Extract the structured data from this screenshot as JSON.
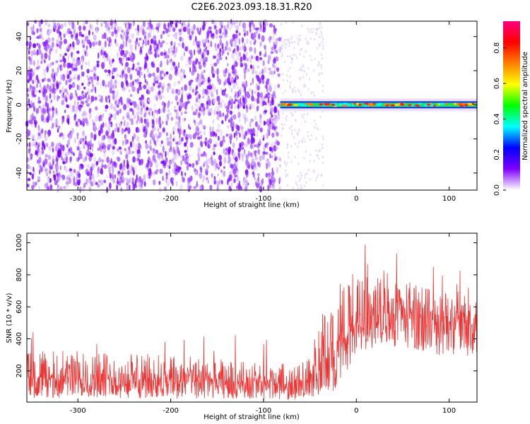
{
  "title": "C2E6.2023.093.18.31.R20",
  "chart_data": [
    {
      "type": "heatmap",
      "xlabel": "Height of straight line (km)",
      "ylabel": "Frequency (Hz)",
      "xlim": [
        -355,
        130
      ],
      "ylim": [
        -50,
        49
      ],
      "x_ticks": [
        -300,
        -200,
        -100,
        0,
        100
      ],
      "y_ticks": [
        -40,
        -20,
        0,
        20,
        40
      ],
      "colorbar": {
        "label": "Normalized spectral amplitude",
        "range": [
          0,
          0.95
        ],
        "ticks": [
          0.0,
          0.2,
          0.4,
          0.6,
          0.8
        ],
        "colors": [
          "#ffffff",
          "#7f00ff",
          "#0000ff",
          "#00ffff",
          "#00ff00",
          "#ffff00",
          "#ff8000",
          "#ff0000",
          "#ff0080"
        ]
      },
      "regions": [
        {
          "x": [
            -355,
            -82
          ],
          "frequency": [
            -50,
            49
          ],
          "amplitude": "noise 0.1-0.3 (purple)"
        },
        {
          "x": [
            -82,
            130
          ],
          "frequency": [
            -2,
            2
          ],
          "amplitude": "signal 0.4-0.9 (green to red)"
        }
      ]
    },
    {
      "type": "line",
      "xlabel": "Height of straight line (km)",
      "ylabel": "SNR (10 * v/v)",
      "xlim": [
        -355,
        130
      ],
      "ylim": [
        5,
        1060
      ],
      "x_ticks": [
        -300,
        -200,
        -100,
        0,
        100
      ],
      "y_ticks": [
        200,
        400,
        600,
        800,
        1000
      ],
      "series_color": "#ee3333",
      "envelope": [
        {
          "x": -355,
          "low": 30,
          "mid": 150,
          "high": 320
        },
        {
          "x": -300,
          "low": 30,
          "mid": 150,
          "high": 330
        },
        {
          "x": -200,
          "low": 25,
          "mid": 140,
          "high": 300
        },
        {
          "x": -100,
          "low": 20,
          "mid": 120,
          "high": 250
        },
        {
          "x": -60,
          "low": 20,
          "mid": 120,
          "high": 240
        },
        {
          "x": -45,
          "low": 40,
          "mid": 170,
          "high": 400
        },
        {
          "x": -35,
          "low": 60,
          "mid": 240,
          "high": 560
        },
        {
          "x": -20,
          "low": 80,
          "mid": 290,
          "high": 620
        },
        {
          "x": -10,
          "low": 200,
          "mid": 420,
          "high": 780
        },
        {
          "x": 0,
          "low": 280,
          "mid": 480,
          "high": 850
        },
        {
          "x": 10,
          "low": 320,
          "mid": 520,
          "high": 880
        },
        {
          "x": 30,
          "low": 360,
          "mid": 560,
          "high": 820
        },
        {
          "x": 60,
          "low": 340,
          "mid": 540,
          "high": 760
        },
        {
          "x": 100,
          "low": 280,
          "mid": 500,
          "high": 730
        },
        {
          "x": 130,
          "low": 300,
          "mid": 500,
          "high": 780
        }
      ]
    }
  ]
}
